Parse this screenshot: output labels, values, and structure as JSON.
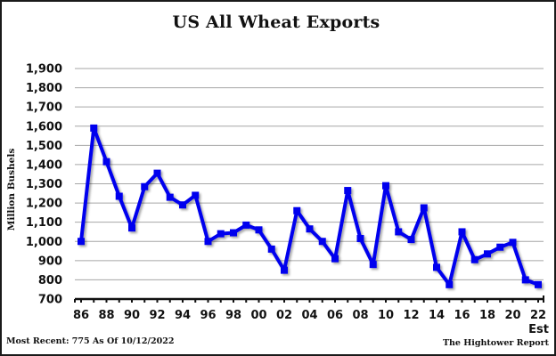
{
  "chart_data": {
    "type": "line",
    "title": "US All Wheat Exports",
    "xlabel": "",
    "ylabel": "Million Bushels",
    "x": [
      "86",
      "87",
      "88",
      "89",
      "90",
      "91",
      "92",
      "93",
      "94",
      "95",
      "96",
      "97",
      "98",
      "99",
      "00",
      "01",
      "02",
      "03",
      "04",
      "05",
      "06",
      "07",
      "08",
      "09",
      "10",
      "11",
      "12",
      "13",
      "14",
      "15",
      "16",
      "17",
      "18",
      "19",
      "20",
      "21",
      "22"
    ],
    "x_tick_labels": [
      "86",
      "88",
      "90",
      "92",
      "94",
      "96",
      "98",
      "00",
      "02",
      "04",
      "06",
      "08",
      "10",
      "12",
      "14",
      "16",
      "18",
      "20",
      "22"
    ],
    "series": [
      {
        "name": "US All Wheat Exports",
        "color": "#0000ee",
        "values": [
          1000,
          1590,
          1415,
          1235,
          1070,
          1285,
          1355,
          1230,
          1190,
          1240,
          1000,
          1040,
          1045,
          1085,
          1060,
          960,
          850,
          1160,
          1065,
          1000,
          910,
          1265,
          1015,
          880,
          1290,
          1050,
          1010,
          1175,
          865,
          775,
          1050,
          905,
          935,
          970,
          995,
          800,
          775
        ]
      }
    ],
    "ylim": [
      700,
      1900
    ],
    "y_tick_labels": [
      "700",
      "800",
      "900",
      "1,000",
      "1,100",
      "1,200",
      "1,300",
      "1,400",
      "1,500",
      "1,600",
      "1,700",
      "1,800",
      "1,900"
    ],
    "grid": true,
    "legend": "none",
    "annotations": [
      "Est",
      "Most Recent: 775 As Of 10/12/2022",
      "The Hightower Report"
    ]
  },
  "labels": {
    "title": "US All Wheat Exports",
    "ylabel": "Million Bushels",
    "est": "Est",
    "most_recent": "Most Recent: 775 As Of 10/12/2022",
    "source": "The Hightower Report"
  },
  "colors": {
    "line": "#0000ee",
    "grid": "#a6a6a6",
    "axis": "#111111"
  }
}
